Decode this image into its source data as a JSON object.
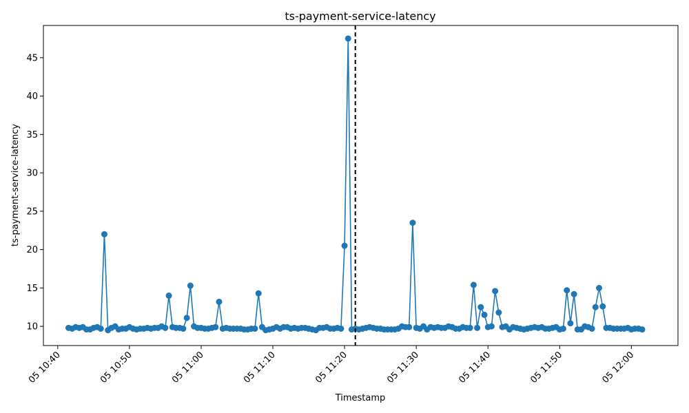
{
  "chart_data": {
    "type": "line",
    "title": "ts-payment-service-latency",
    "xlabel": "Timestamp",
    "ylabel": "ts-payment-service-latency",
    "x_axis_kind": "time",
    "xlim": [
      "05 10:38:00",
      "05 12:06:30"
    ],
    "ylim": [
      7.5,
      49.2
    ],
    "x_ticks": [
      {
        "time": "05 10:40",
        "label": "05 10:40"
      },
      {
        "time": "05 10:50",
        "label": "05 10:50"
      },
      {
        "time": "05 11:00",
        "label": "05 11:00"
      },
      {
        "time": "05 11:10",
        "label": "05 11:10"
      },
      {
        "time": "05 11:20",
        "label": "05 11:20"
      },
      {
        "time": "05 11:30",
        "label": "05 11:30"
      },
      {
        "time": "05 11:40",
        "label": "05 11:40"
      },
      {
        "time": "05 11:50",
        "label": "05 11:50"
      },
      {
        "time": "05 12:00",
        "label": "05 12:00"
      }
    ],
    "y_ticks": [
      10,
      15,
      20,
      25,
      30,
      35,
      40,
      45
    ],
    "grid": false,
    "legend": "none",
    "line_color": "#1f77b4",
    "marker": "circle",
    "marker_color": "#1f77b4",
    "anomaly_line": {
      "time": "05 11:21:30",
      "style": "dashed",
      "color": "#000000"
    },
    "series": [
      {
        "start": "05 10:41:30",
        "step_seconds": 30,
        "values": [
          9.8,
          9.7,
          9.9,
          9.8,
          9.9,
          9.6,
          9.6,
          9.8,
          9.9,
          9.7,
          22.0,
          9.5,
          9.8,
          10.0,
          9.6,
          9.7,
          9.7,
          9.9,
          9.7,
          9.6,
          9.7,
          9.7,
          9.8,
          9.7,
          9.8,
          9.8,
          10.0,
          9.8,
          14.0,
          9.9,
          9.8,
          9.8,
          9.7,
          11.1,
          15.3,
          10.0,
          9.8,
          9.8,
          9.7,
          9.7,
          9.8,
          9.9,
          13.2,
          9.7,
          9.8,
          9.7,
          9.7,
          9.7,
          9.7,
          9.6,
          9.6,
          9.7,
          9.7,
          14.3,
          9.9,
          9.5,
          9.6,
          9.7,
          9.9,
          9.7,
          9.9,
          9.9,
          9.7,
          9.8,
          9.7,
          9.8,
          9.8,
          9.7,
          9.6,
          9.5,
          9.8,
          9.8,
          9.9,
          9.7,
          9.7,
          9.8,
          9.7,
          20.5,
          47.5,
          9.6,
          9.7,
          9.6,
          9.7,
          9.8,
          9.9,
          9.8,
          9.7,
          9.7,
          9.6,
          9.6,
          9.6,
          9.6,
          9.7,
          10.0,
          9.9,
          9.9,
          23.5,
          9.8,
          9.7,
          10.0,
          9.6,
          9.9,
          9.8,
          9.9,
          9.8,
          9.8,
          10.0,
          9.9,
          9.7,
          9.7,
          9.9,
          9.8,
          9.8,
          15.4,
          9.8,
          12.5,
          11.5,
          9.9,
          10.0,
          14.6,
          11.8,
          9.9,
          10.0,
          9.6,
          9.9,
          9.8,
          9.7,
          9.6,
          9.7,
          9.8,
          9.9,
          9.8,
          9.9,
          9.7,
          9.7,
          9.8,
          9.9,
          9.6,
          9.7,
          14.7,
          10.4,
          14.2,
          9.6,
          9.6,
          10.0,
          9.9,
          9.7,
          12.5,
          15.0,
          12.6,
          9.8,
          9.8,
          9.7,
          9.7,
          9.7,
          9.7,
          9.8,
          9.6,
          9.7,
          9.7,
          9.6
        ]
      }
    ]
  }
}
